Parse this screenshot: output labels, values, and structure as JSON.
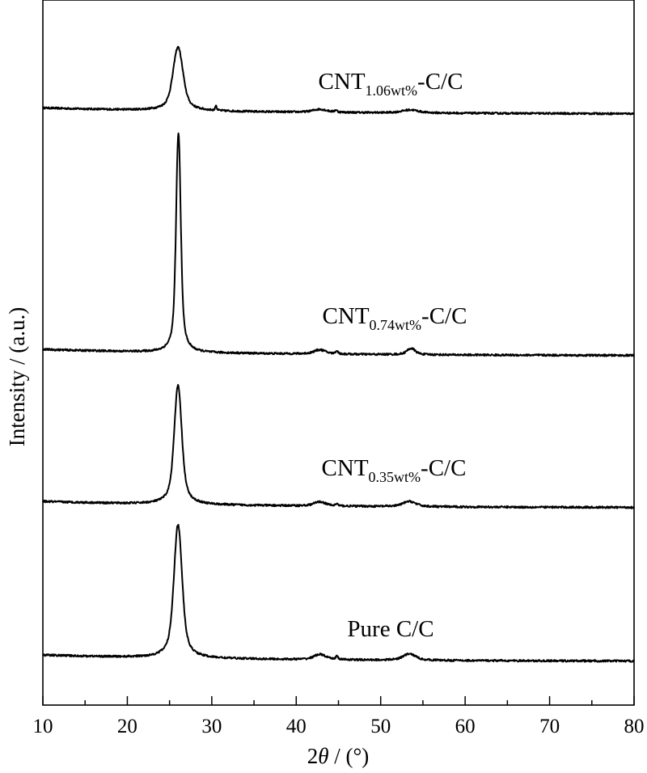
{
  "chart_data": {
    "type": "line",
    "title": "",
    "xlabel_prefix": "2",
    "xlabel_symbol": "θ",
    "xlabel_suffix": " / (°)",
    "ylabel": "Intensity / (a.u.)",
    "xlim": [
      10,
      80
    ],
    "xticks": [
      10,
      20,
      30,
      40,
      50,
      60,
      70,
      80
    ],
    "minor_xticks": [
      15,
      25,
      35,
      45,
      55,
      65,
      75
    ],
    "grid": false,
    "legend": "inline labels",
    "series": [
      {
        "name": "CNT1.06wt%-C/C",
        "label_main": "CNT",
        "label_sub": "1.06wt%",
        "label_tail": "-C/C",
        "baseline": 0.97,
        "peaks": [
          {
            "x": 26.0,
            "height": 0.63,
            "width": 0.85
          },
          {
            "x": 30.5,
            "height": 0.05,
            "width": 0.12
          },
          {
            "x": 42.8,
            "height": 0.03,
            "width": 1.2
          },
          {
            "x": 44.7,
            "height": 0.02,
            "width": 0.2
          },
          {
            "x": 53.5,
            "height": 0.03,
            "width": 1.4
          }
        ]
      },
      {
        "name": "CNT0.74wt%-C/C",
        "label_main": "CNT",
        "label_sub": "0.74wt%",
        "label_tail": "-C/C",
        "baseline": 0.97,
        "peaks": [
          {
            "x": 26.05,
            "height": 2.09,
            "width": 0.4
          },
          {
            "x": 42.8,
            "height": 0.04,
            "width": 1.0
          },
          {
            "x": 44.8,
            "height": 0.03,
            "width": 0.2
          },
          {
            "x": 53.6,
            "height": 0.06,
            "width": 0.7
          }
        ]
      },
      {
        "name": "CNT0.35wt%-C/C",
        "label_main": "CNT",
        "label_sub": "0.35wt%",
        "label_tail": "-C/C",
        "baseline": 0.96,
        "peaks": [
          {
            "x": 26.0,
            "height": 1.13,
            "width": 0.65
          },
          {
            "x": 42.8,
            "height": 0.04,
            "width": 1.0
          },
          {
            "x": 44.8,
            "height": 0.02,
            "width": 0.2
          },
          {
            "x": 53.4,
            "height": 0.05,
            "width": 1.1
          }
        ]
      },
      {
        "name": "Pure C/C",
        "label_main": "Pure C/C",
        "label_sub": "",
        "label_tail": "",
        "baseline": 1.06,
        "peaks": [
          {
            "x": 26.0,
            "height": 1.27,
            "width": 0.7
          },
          {
            "x": 42.8,
            "height": 0.05,
            "width": 1.0
          },
          {
            "x": 44.8,
            "height": 0.03,
            "width": 0.2
          },
          {
            "x": 53.4,
            "height": 0.06,
            "width": 1.1
          }
        ]
      }
    ]
  }
}
